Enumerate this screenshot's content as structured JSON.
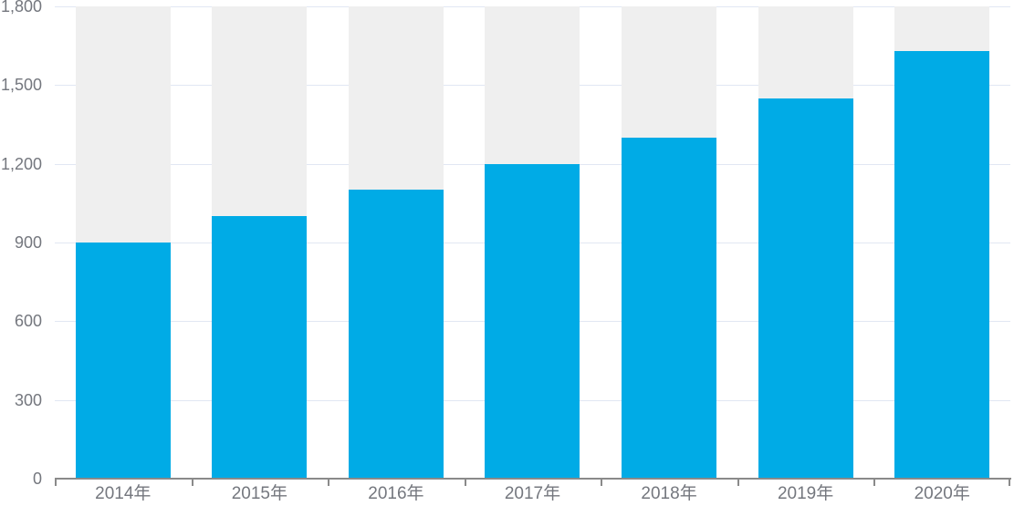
{
  "chart_data": {
    "type": "bar",
    "title": "",
    "xlabel": "",
    "ylabel": "",
    "categories": [
      "2014年",
      "2015年",
      "2016年",
      "2017年",
      "2018年",
      "2019年",
      "2020年"
    ],
    "values": [
      900,
      1000,
      1100,
      1200,
      1300,
      1450,
      1630
    ],
    "ylim": [
      0,
      1800
    ],
    "ytick_interval": 300,
    "ytick_labels": [
      "0",
      "300",
      "600",
      "900",
      "1,200",
      "1,500",
      "1,800"
    ],
    "grid": true,
    "legend": false,
    "bar_background_visible": true,
    "colors": {
      "bar": "#00ABE6",
      "bar_background": "#EFEFEF",
      "gridline": "#E1E7F3",
      "axis_line": "#8A8A8A",
      "axis_text": "#74777E"
    }
  }
}
